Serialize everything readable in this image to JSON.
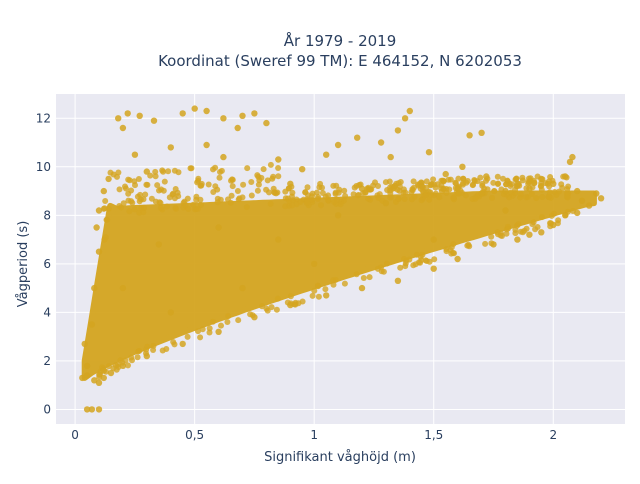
{
  "chart_data": {
    "type": "scatter",
    "title_lines": [
      "År 1979 - 2019",
      "Koordinat (Sweref 99 TM): E 464152, N 6202053"
    ],
    "xlabel": "Signifikant våghöjd (m)",
    "ylabel": "Vågperiod (s)",
    "xlim": [
      -0.08,
      2.3
    ],
    "ylim": [
      -0.6,
      13.0
    ],
    "x_ticks": [
      0,
      0.5,
      1,
      1.5,
      2
    ],
    "x_tick_labels": [
      "0",
      "0,5",
      "1",
      "1,5",
      "2"
    ],
    "y_ticks": [
      0,
      2,
      4,
      6,
      8,
      10,
      12
    ],
    "y_tick_labels": [
      "0",
      "2",
      "4",
      "6",
      "8",
      "10",
      "12"
    ],
    "grid": true,
    "background": "#e9e9f2",
    "point_color": "#d4a520",
    "points": [
      [
        0.05,
        0.0
      ],
      [
        0.07,
        0.0
      ],
      [
        0.1,
        0.0
      ],
      [
        0.03,
        1.3
      ],
      [
        0.05,
        1.4
      ],
      [
        0.04,
        2.7
      ],
      [
        0.08,
        1.2
      ],
      [
        0.1,
        1.1
      ],
      [
        0.12,
        1.3
      ],
      [
        0.15,
        1.5
      ],
      [
        0.18,
        12.0
      ],
      [
        0.2,
        11.6
      ],
      [
        0.22,
        12.2
      ],
      [
        0.27,
        12.1
      ],
      [
        0.33,
        11.9
      ],
      [
        0.45,
        12.2
      ],
      [
        0.5,
        12.4
      ],
      [
        0.55,
        12.3
      ],
      [
        0.62,
        12.0
      ],
      [
        0.7,
        12.1
      ],
      [
        0.75,
        12.2
      ],
      [
        0.8,
        11.8
      ],
      [
        0.68,
        11.6
      ],
      [
        0.62,
        10.4
      ],
      [
        0.85,
        10.3
      ],
      [
        0.95,
        9.9
      ],
      [
        1.05,
        10.5
      ],
      [
        1.1,
        10.9
      ],
      [
        1.18,
        11.2
      ],
      [
        1.28,
        11.0
      ],
      [
        1.35,
        11.5
      ],
      [
        1.38,
        12.0
      ],
      [
        1.4,
        12.3
      ],
      [
        1.32,
        10.4
      ],
      [
        1.48,
        10.6
      ],
      [
        1.55,
        9.7
      ],
      [
        1.62,
        10.0
      ],
      [
        1.65,
        11.3
      ],
      [
        1.7,
        11.4
      ],
      [
        1.6,
        9.1
      ],
      [
        1.72,
        9.6
      ],
      [
        1.8,
        9.0
      ],
      [
        1.85,
        9.3
      ],
      [
        1.9,
        9.1
      ],
      [
        1.95,
        9.5
      ],
      [
        2.0,
        9.3
      ],
      [
        2.05,
        9.6
      ],
      [
        2.07,
        10.2
      ],
      [
        2.08,
        10.4
      ],
      [
        2.1,
        9.0
      ],
      [
        2.12,
        8.6
      ],
      [
        2.15,
        8.4
      ],
      [
        2.18,
        8.9
      ],
      [
        2.2,
        8.7
      ],
      [
        2.05,
        8.0
      ],
      [
        2.1,
        8.1
      ],
      [
        1.95,
        7.3
      ],
      [
        2.0,
        7.6
      ],
      [
        1.85,
        7.0
      ],
      [
        1.9,
        7.2
      ],
      [
        1.75,
        6.8
      ],
      [
        1.6,
        6.2
      ],
      [
        1.5,
        5.8
      ],
      [
        1.35,
        5.3
      ],
      [
        1.2,
        5.0
      ],
      [
        1.05,
        4.7
      ],
      [
        0.9,
        4.3
      ],
      [
        0.75,
        3.8
      ],
      [
        0.6,
        3.2
      ],
      [
        0.45,
        2.7
      ],
      [
        0.3,
        2.2
      ],
      [
        0.2,
        1.8
      ],
      [
        0.12,
        1.6
      ],
      [
        0.05,
        1.8
      ],
      [
        0.07,
        3.5
      ],
      [
        0.08,
        5.0
      ],
      [
        0.1,
        6.5
      ],
      [
        0.09,
        7.5
      ],
      [
        0.1,
        8.2
      ],
      [
        0.12,
        9.0
      ],
      [
        0.14,
        9.5
      ],
      [
        0.25,
        10.5
      ],
      [
        0.4,
        10.8
      ],
      [
        0.55,
        10.9
      ],
      [
        0.3,
        9.8
      ],
      [
        0.9,
        9.3
      ],
      [
        1.2,
        9.1
      ],
      [
        1.45,
        9.2
      ],
      [
        1.7,
        8.9
      ],
      [
        1.3,
        8.5
      ],
      [
        0.7,
        5.0
      ],
      [
        1.0,
        6.0
      ],
      [
        1.5,
        7.0
      ],
      [
        0.4,
        4.0
      ],
      [
        0.2,
        5.0
      ],
      [
        0.6,
        7.5
      ],
      [
        1.1,
        8.0
      ],
      [
        1.8,
        8.2
      ],
      [
        0.35,
        6.8
      ],
      [
        0.85,
        7.0
      ]
    ]
  }
}
